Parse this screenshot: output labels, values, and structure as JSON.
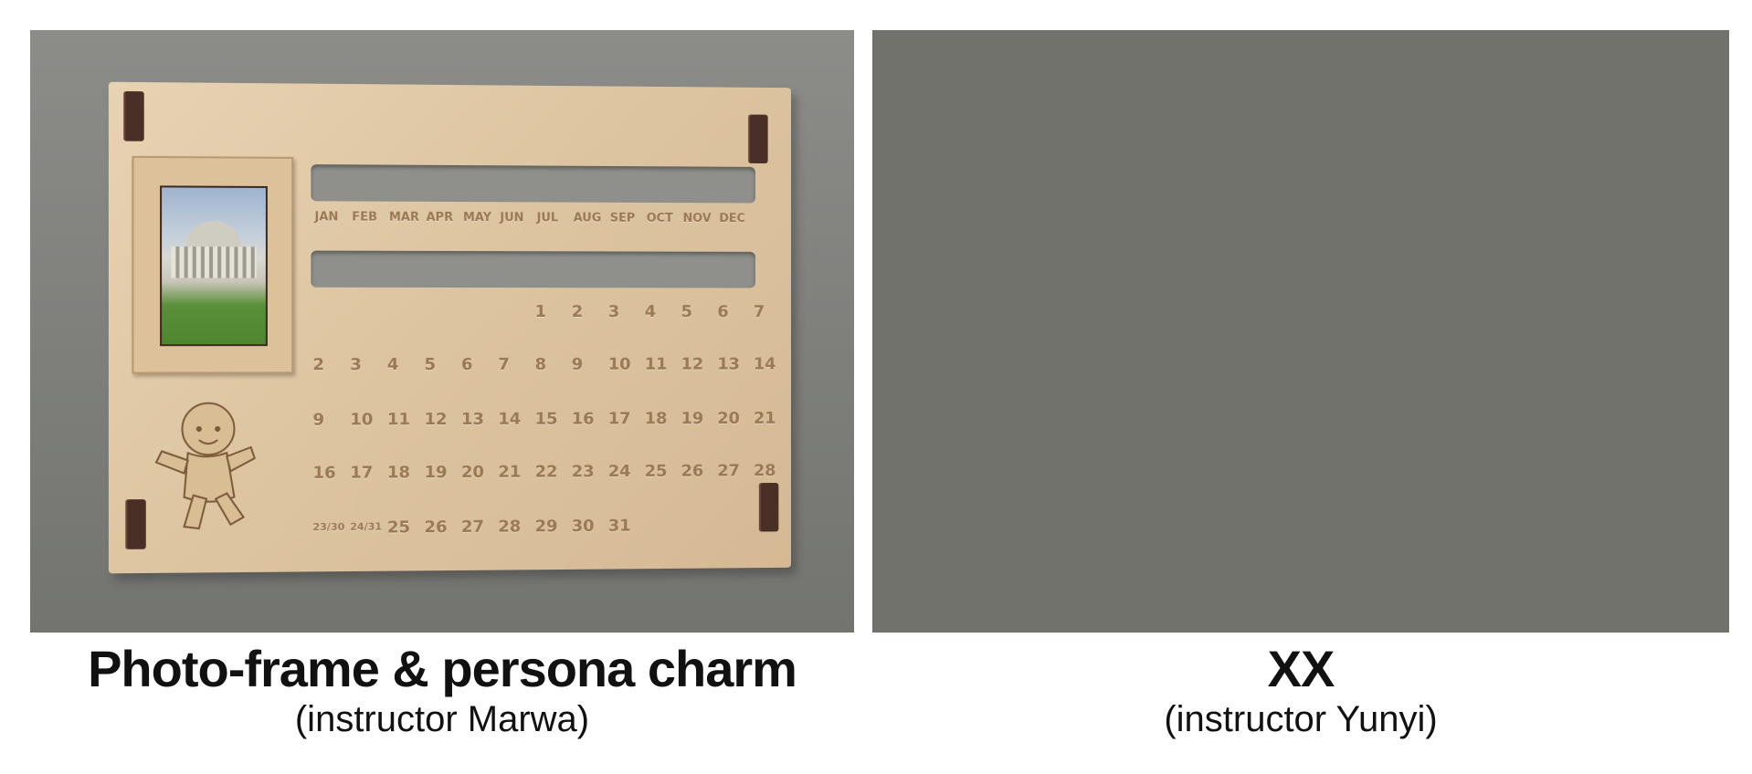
{
  "left_panel": {
    "caption_title": "Photo-frame & persona charm",
    "caption_subtitle": "(instructor Marwa)",
    "calendar": {
      "months": [
        "JAN",
        "FEB",
        "MAR",
        "APR",
        "MAY",
        "JUN",
        "JUL",
        "AUG",
        "SEP",
        "OCT",
        "NOV",
        "DEC"
      ],
      "day_rows": [
        [
          "1",
          "2",
          "3",
          "4",
          "5",
          "6",
          "7"
        ],
        [
          "2",
          "3",
          "4",
          "5",
          "6",
          "7",
          "8",
          "9",
          "10",
          "11",
          "12",
          "13",
          "14"
        ],
        [
          "9",
          "10",
          "11",
          "12",
          "13",
          "14",
          "15",
          "16",
          "17",
          "18",
          "19",
          "20",
          "21"
        ],
        [
          "16",
          "17",
          "18",
          "19",
          "20",
          "21",
          "22",
          "23",
          "24",
          "25",
          "26",
          "27",
          "28"
        ],
        [
          "25",
          "26",
          "27",
          "28",
          "29",
          "30",
          "31"
        ]
      ],
      "fractions": [
        "23/30",
        "24/31"
      ]
    }
  },
  "right_panel": {
    "caption_title": "XX",
    "caption_subtitle": "(instructor Yunyi)",
    "background_color": "#71726b"
  }
}
